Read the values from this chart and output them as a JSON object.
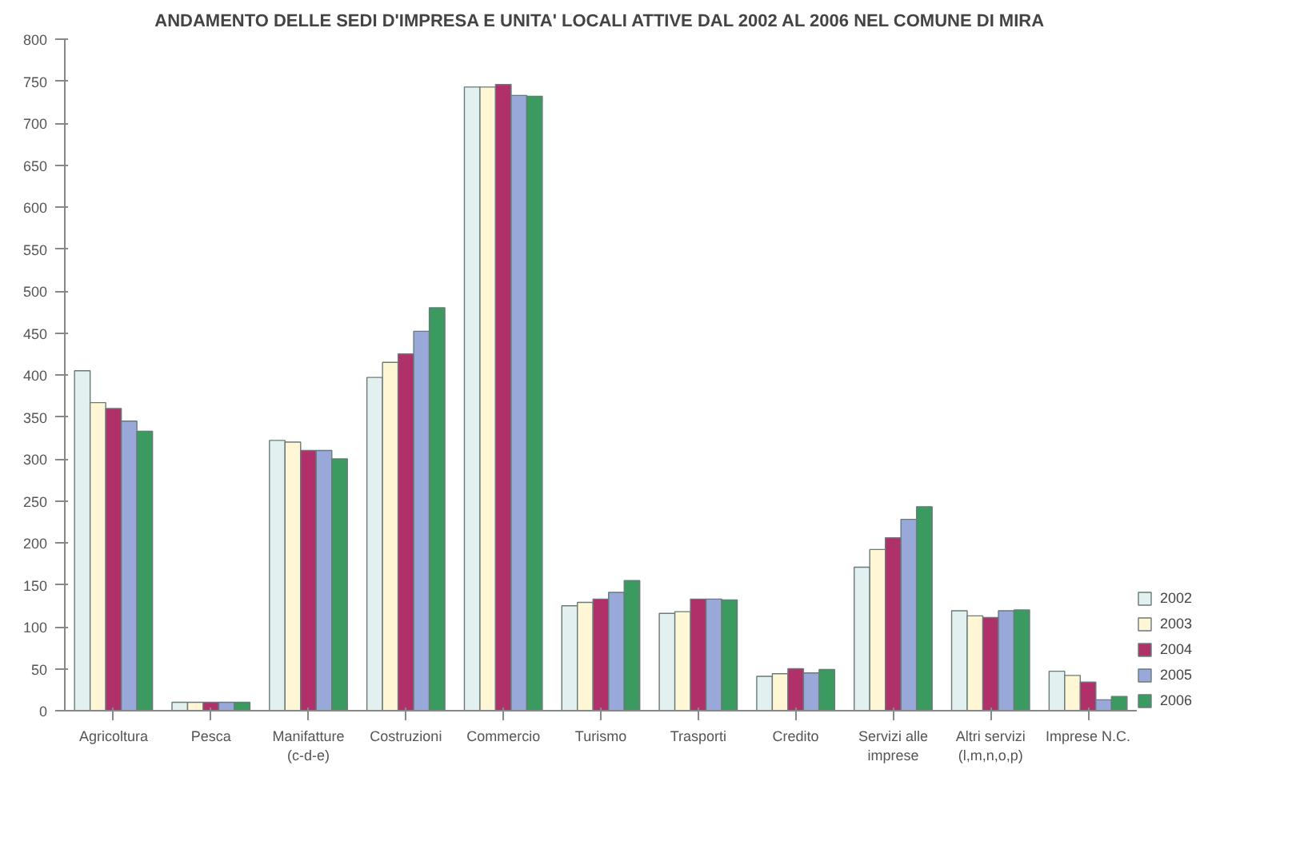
{
  "chart_data": {
    "type": "bar",
    "title": "ANDAMENTO DELLE SEDI D'IMPRESA E UNITA' LOCALI ATTIVE DAL 2002 AL 2006 NEL COMUNE DI MIRA",
    "categories": [
      "Agricoltura",
      "Pesca",
      "Manifatture\n(c-d-e)",
      "Costruzioni",
      "Commercio",
      "Turismo",
      "Trasporti",
      "Credito",
      "Servizi alle\nimprese",
      "Altri servizi\n(l,m,n,o,p)",
      "Imprese N.C."
    ],
    "series": [
      {
        "name": "2002",
        "color": "#e2f0f0",
        "values": [
          405,
          10,
          322,
          397,
          743,
          125,
          116,
          41,
          171,
          119,
          47
        ]
      },
      {
        "name": "2003",
        "color": "#fff6d6",
        "values": [
          367,
          10,
          320,
          415,
          743,
          129,
          118,
          44,
          192,
          113,
          42
        ]
      },
      {
        "name": "2004",
        "color": "#b0306a",
        "values": [
          360,
          10,
          310,
          425,
          746,
          133,
          133,
          50,
          206,
          111,
          34
        ]
      },
      {
        "name": "2005",
        "color": "#98a8d8",
        "values": [
          345,
          10,
          310,
          452,
          733,
          141,
          133,
          45,
          228,
          119,
          13
        ]
      },
      {
        "name": "2006",
        "color": "#3a9a60",
        "values": [
          333,
          10,
          300,
          480,
          732,
          155,
          132,
          49,
          243,
          120,
          17
        ]
      }
    ],
    "ylim": [
      0,
      800
    ],
    "yticks": [
      0,
      50,
      100,
      150,
      200,
      250,
      300,
      350,
      400,
      450,
      500,
      550,
      600,
      650,
      700,
      750,
      800
    ],
    "grid": false,
    "legend": "right"
  }
}
